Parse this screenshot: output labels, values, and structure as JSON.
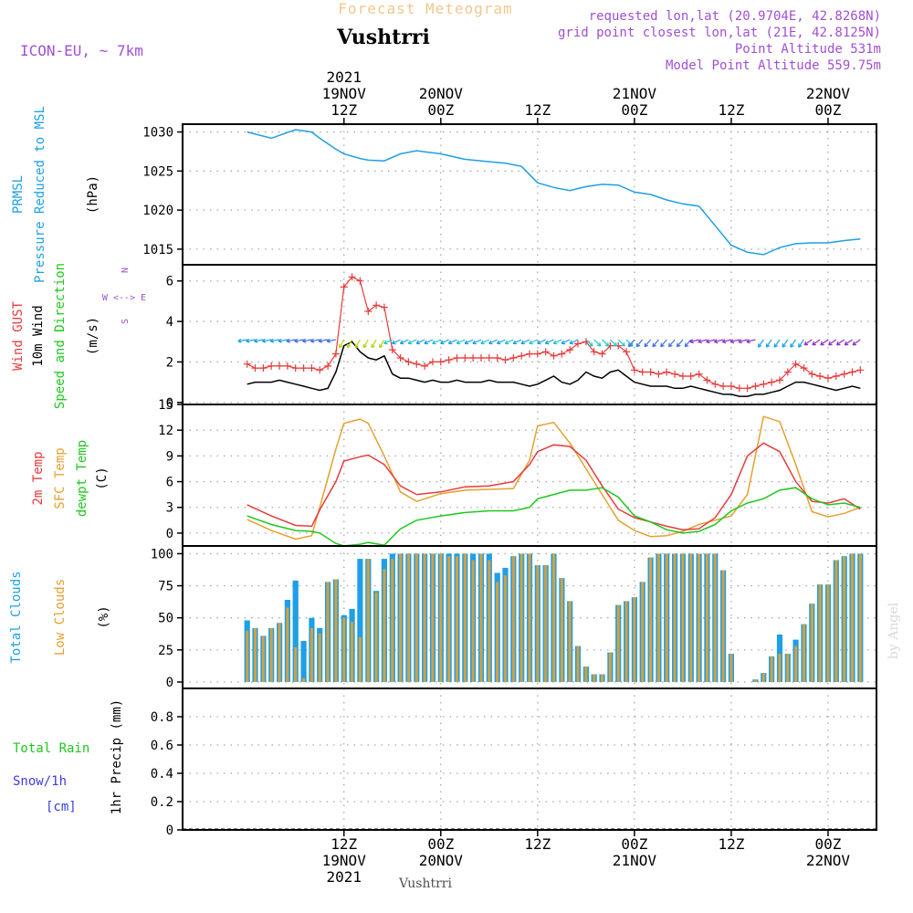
{
  "header": {
    "subtitle": "Forecast Meteogram",
    "location": "Vushtrri",
    "model": "ICON-EU, ~ 7km",
    "requested": "requested lon,lat (20.9704E, 42.8268N)",
    "gridpoint": "grid point closest lon,lat (21E, 42.8125N)",
    "point_alt": "Point Altitude 531m",
    "model_alt": "Model Point Altitude 559.75m"
  },
  "footer": {
    "location": "Vushtrri",
    "credit": "by Angel"
  },
  "time_axis": {
    "top_year": "2021",
    "ticks": [
      {
        "hour": 12,
        "top": [
          "19NOV",
          "12Z"
        ],
        "bottom": [
          "12Z",
          "19NOV",
          "2021"
        ]
      },
      {
        "hour": 24,
        "top": [
          "20NOV",
          "00Z"
        ],
        "bottom": [
          "00Z",
          "20NOV"
        ]
      },
      {
        "hour": 36,
        "top": [
          "12Z"
        ],
        "bottom": [
          "12Z"
        ]
      },
      {
        "hour": 48,
        "top": [
          "21NOV",
          "00Z"
        ],
        "bottom": [
          "00Z",
          "21NOV"
        ]
      },
      {
        "hour": 60,
        "top": [
          "12Z"
        ],
        "bottom": [
          "12Z"
        ]
      },
      {
        "hour": 72,
        "top": [
          "22NOV",
          "00Z"
        ],
        "bottom": [
          "00Z",
          "22NOV"
        ]
      }
    ]
  },
  "colors": {
    "pressure": "#1E9FE6",
    "gust": "#E63C3C",
    "wind": "#000000",
    "temp2m": "#E63C3C",
    "sfc": "#E6A030",
    "dewpt": "#1EC81E",
    "total_clouds": "#1E9FE6",
    "low_clouds": "#D4A040",
    "label_purple": "#A050D2",
    "label_rain": "#1EC81E",
    "label_snow": "#3C3CE6",
    "header_subtitle": "#F0C88C"
  },
  "chart_data": [
    {
      "type": "line",
      "title": "PRMSL Pressure Reduced to MSL",
      "ylabel": "(hPa)",
      "ylim": [
        1013,
        1031
      ],
      "yticks": [
        1015,
        1020,
        1025,
        1030
      ],
      "grid": true,
      "x": [
        0,
        3,
        6,
        8,
        9,
        11,
        12,
        14,
        15,
        17,
        19,
        21,
        24,
        27,
        30,
        32,
        34,
        36,
        38,
        40,
        42,
        44,
        46,
        48,
        50,
        52,
        54,
        56,
        58,
        60,
        62,
        64,
        66,
        68,
        70,
        72,
        74,
        76
      ],
      "series": [
        {
          "name": "PRMSL",
          "values": [
            1030.0,
            1029.2,
            1030.3,
            1030.0,
            1029.2,
            1027.8,
            1027.2,
            1026.6,
            1026.4,
            1026.3,
            1027.2,
            1027.6,
            1027.2,
            1026.5,
            1026.2,
            1026.0,
            1025.6,
            1023.5,
            1022.9,
            1022.5,
            1023.0,
            1023.3,
            1023.2,
            1022.3,
            1022.0,
            1021.3,
            1020.8,
            1020.5,
            1018.0,
            1015.5,
            1014.6,
            1014.3,
            1015.2,
            1015.7,
            1015.8,
            1015.8,
            1016.1,
            1016.3
          ]
        }
      ]
    },
    {
      "type": "line",
      "title": "Wind GUST / 10m Wind Speed and Direction",
      "ylabel": "(m/s)",
      "compass": "W <--> E, N, S",
      "ylim": [
        -0.1,
        6.8
      ],
      "yticks": [
        0,
        2,
        4,
        6
      ],
      "grid": true,
      "x": [
        0,
        1,
        2,
        3,
        4,
        5,
        6,
        7,
        8,
        9,
        10,
        11,
        12,
        13,
        14,
        15,
        16,
        17,
        18,
        19,
        20,
        21,
        22,
        23,
        24,
        25,
        26,
        27,
        28,
        29,
        30,
        31,
        32,
        33,
        34,
        35,
        36,
        37,
        38,
        39,
        40,
        41,
        42,
        43,
        44,
        45,
        46,
        47,
        48,
        49,
        50,
        51,
        52,
        53,
        54,
        55,
        56,
        57,
        58,
        59,
        60,
        61,
        62,
        63,
        64,
        65,
        66,
        67,
        68,
        69,
        70,
        71,
        72,
        73,
        74,
        75,
        76
      ],
      "series": [
        {
          "name": "Wind GUST",
          "values": [
            1.9,
            1.7,
            1.7,
            1.8,
            1.8,
            1.8,
            1.7,
            1.7,
            1.7,
            1.6,
            1.8,
            2.4,
            5.7,
            6.2,
            6.0,
            4.5,
            4.8,
            4.7,
            2.6,
            2.2,
            2.0,
            1.9,
            1.8,
            2.0,
            2.0,
            2.1,
            2.2,
            2.2,
            2.2,
            2.2,
            2.2,
            2.2,
            2.1,
            2.2,
            2.3,
            2.4,
            2.4,
            2.5,
            2.3,
            2.4,
            2.6,
            2.9,
            3.0,
            2.5,
            2.4,
            2.8,
            2.8,
            2.5,
            1.6,
            1.5,
            1.5,
            1.4,
            1.5,
            1.4,
            1.3,
            1.3,
            1.4,
            1.1,
            0.9,
            0.8,
            0.8,
            0.7,
            0.7,
            0.8,
            0.9,
            1.0,
            1.1,
            1.5,
            1.9,
            1.7,
            1.4,
            1.3,
            1.2,
            1.3,
            1.4,
            1.5,
            1.6
          ]
        },
        {
          "name": "10m Wind",
          "values": [
            0.9,
            1.0,
            1.0,
            1.0,
            1.1,
            1.0,
            0.9,
            0.8,
            0.7,
            0.6,
            0.7,
            1.5,
            2.8,
            3.0,
            2.5,
            2.2,
            2.1,
            2.3,
            1.4,
            1.2,
            1.2,
            1.1,
            1.0,
            1.1,
            1.0,
            1.0,
            1.1,
            1.0,
            1.0,
            1.0,
            1.1,
            1.0,
            1.0,
            1.0,
            0.9,
            0.8,
            0.9,
            1.1,
            1.3,
            1.0,
            0.9,
            1.1,
            1.5,
            1.3,
            1.2,
            1.5,
            1.6,
            1.3,
            1.0,
            0.9,
            0.8,
            0.8,
            0.8,
            0.7,
            0.7,
            0.8,
            0.7,
            0.6,
            0.5,
            0.4,
            0.4,
            0.3,
            0.3,
            0.4,
            0.4,
            0.5,
            0.6,
            0.8,
            1.0,
            1.0,
            0.9,
            0.8,
            0.7,
            0.6,
            0.7,
            0.8,
            0.7
          ]
        }
      ]
    },
    {
      "type": "line",
      "title": "2m Temp / SFC Temp / dewpt Temp",
      "ylabel": "(C)",
      "ylim": [
        -1.5,
        15
      ],
      "yticks": [
        0,
        3,
        6,
        9,
        12,
        15
      ],
      "grid": true,
      "x": [
        0,
        3,
        6,
        8,
        9,
        11,
        12,
        14,
        15,
        17,
        19,
        21,
        24,
        27,
        30,
        33,
        35,
        36,
        38,
        40,
        42,
        44,
        46,
        48,
        50,
        52,
        54,
        56,
        58,
        60,
        62,
        64,
        66,
        68,
        70,
        72,
        74,
        76
      ],
      "series": [
        {
          "name": "2m Temp",
          "values": [
            3.3,
            2.0,
            0.9,
            0.8,
            2.7,
            6.0,
            8.4,
            8.9,
            9.1,
            8.0,
            5.5,
            4.5,
            4.8,
            5.4,
            5.5,
            6.0,
            8.0,
            9.5,
            10.3,
            10.1,
            8.5,
            5.5,
            2.8,
            1.8,
            1.3,
            0.8,
            0.4,
            0.5,
            1.8,
            4.5,
            9.0,
            10.5,
            9.5,
            6.0,
            3.7,
            3.5,
            4.0,
            2.8
          ]
        },
        {
          "name": "SFC Temp",
          "values": [
            1.6,
            0.3,
            -0.7,
            -0.3,
            3.0,
            9.8,
            12.8,
            13.3,
            12.8,
            9.0,
            4.8,
            3.7,
            4.6,
            5.0,
            5.1,
            5.2,
            8.5,
            12.5,
            12.9,
            10.5,
            7.5,
            4.5,
            1.5,
            0.3,
            -0.4,
            -0.3,
            0.2,
            1.0,
            1.5,
            2.0,
            4.5,
            13.6,
            13.0,
            8.0,
            2.5,
            1.9,
            2.3,
            3.0
          ]
        },
        {
          "name": "dewpt Temp",
          "values": [
            2.0,
            1.0,
            0.3,
            0.2,
            0.0,
            -1.2,
            -1.5,
            -1.3,
            -1.1,
            -1.4,
            0.5,
            1.5,
            2.0,
            2.4,
            2.6,
            2.6,
            3.0,
            4.0,
            4.5,
            5.0,
            5.0,
            5.3,
            4.2,
            2.0,
            1.3,
            0.4,
            0.0,
            0.2,
            1.0,
            2.6,
            3.5,
            4.0,
            5.0,
            5.3,
            4.0,
            3.3,
            3.5,
            3.0
          ]
        }
      ]
    },
    {
      "type": "bar",
      "title": "Total Clouds / Low Clouds",
      "ylabel": "(%)",
      "ylim": [
        -5,
        106
      ],
      "yticks": [
        0,
        25,
        50,
        75,
        100
      ],
      "grid": true,
      "x": [
        0,
        1,
        2,
        3,
        4,
        5,
        6,
        7,
        8,
        9,
        10,
        11,
        12,
        13,
        14,
        15,
        16,
        17,
        18,
        19,
        20,
        21,
        22,
        23,
        24,
        25,
        26,
        27,
        28,
        29,
        30,
        31,
        32,
        33,
        34,
        35,
        36,
        37,
        38,
        39,
        40,
        41,
        42,
        43,
        44,
        45,
        46,
        47,
        48,
        49,
        50,
        51,
        52,
        53,
        54,
        55,
        56,
        57,
        58,
        59,
        60,
        61,
        62,
        63,
        64,
        65,
        66,
        67,
        68,
        69,
        70,
        71,
        72,
        73,
        74,
        75,
        76
      ],
      "series": [
        {
          "name": "Total Clouds",
          "values": [
            48,
            42,
            36,
            42,
            46,
            64,
            79,
            32,
            50,
            42,
            78,
            80,
            52,
            57,
            96,
            96,
            71,
            96,
            100,
            100,
            100,
            100,
            100,
            100,
            100,
            100,
            100,
            100,
            100,
            100,
            100,
            85,
            89,
            98,
            100,
            100,
            91,
            91,
            100,
            81,
            63,
            28,
            12,
            6,
            6,
            23,
            60,
            63,
            66,
            78,
            97,
            100,
            100,
            100,
            100,
            100,
            100,
            100,
            100,
            87,
            22,
            0,
            0,
            2,
            7,
            20,
            37,
            22,
            33,
            45,
            61,
            76,
            76,
            95,
            98,
            100,
            100
          ]
        },
        {
          "name": "Low Clouds",
          "values": [
            40,
            42,
            36,
            42,
            46,
            58,
            27,
            3,
            42,
            38,
            78,
            80,
            50,
            47,
            35,
            96,
            70,
            88,
            96,
            100,
            100,
            100,
            100,
            100,
            100,
            98,
            98,
            100,
            95,
            100,
            95,
            78,
            83,
            98,
            100,
            100,
            91,
            91,
            100,
            81,
            63,
            28,
            12,
            6,
            6,
            23,
            60,
            63,
            66,
            78,
            97,
            100,
            100,
            100,
            100,
            100,
            100,
            100,
            100,
            87,
            22,
            0,
            0,
            2,
            7,
            20,
            22,
            22,
            28,
            45,
            61,
            76,
            76,
            95,
            98,
            100,
            100
          ]
        }
      ]
    },
    {
      "type": "bar",
      "title": "Total Rain / Snow/1h [cm]",
      "ylabel": "1hr Precip (mm)",
      "ylim": [
        0,
        1
      ],
      "yticks": [
        0,
        0.2,
        0.4,
        0.6,
        0.8
      ],
      "ytick_labels": [
        "0",
        "0.2",
        "0.4",
        "0.6",
        "0.8"
      ],
      "grid": true,
      "series": [
        {
          "name": "Total Rain",
          "values": []
        },
        {
          "name": "Snow/1h",
          "values": []
        }
      ]
    }
  ],
  "panel_labels": {
    "p0": [
      "PRMSL",
      "Pressure Reduced to MSL",
      "(hPa)"
    ],
    "p1": [
      "Wind GUST",
      "10m Wind",
      "Speed and Direction",
      "(m/s)"
    ],
    "p1_compass": {
      "n": "N",
      "row": "W <--> E",
      "s": "S"
    },
    "p2": [
      "2m Temp",
      "SFC Temp",
      "dewpt Temp",
      "(C)"
    ],
    "p3": [
      "Total Clouds",
      "Low Clouds",
      "(%)"
    ],
    "p4_left": [
      "Total  Rain",
      "Snow/1h",
      "[cm]"
    ],
    "p4_axis": "1hr Precip (mm)"
  }
}
